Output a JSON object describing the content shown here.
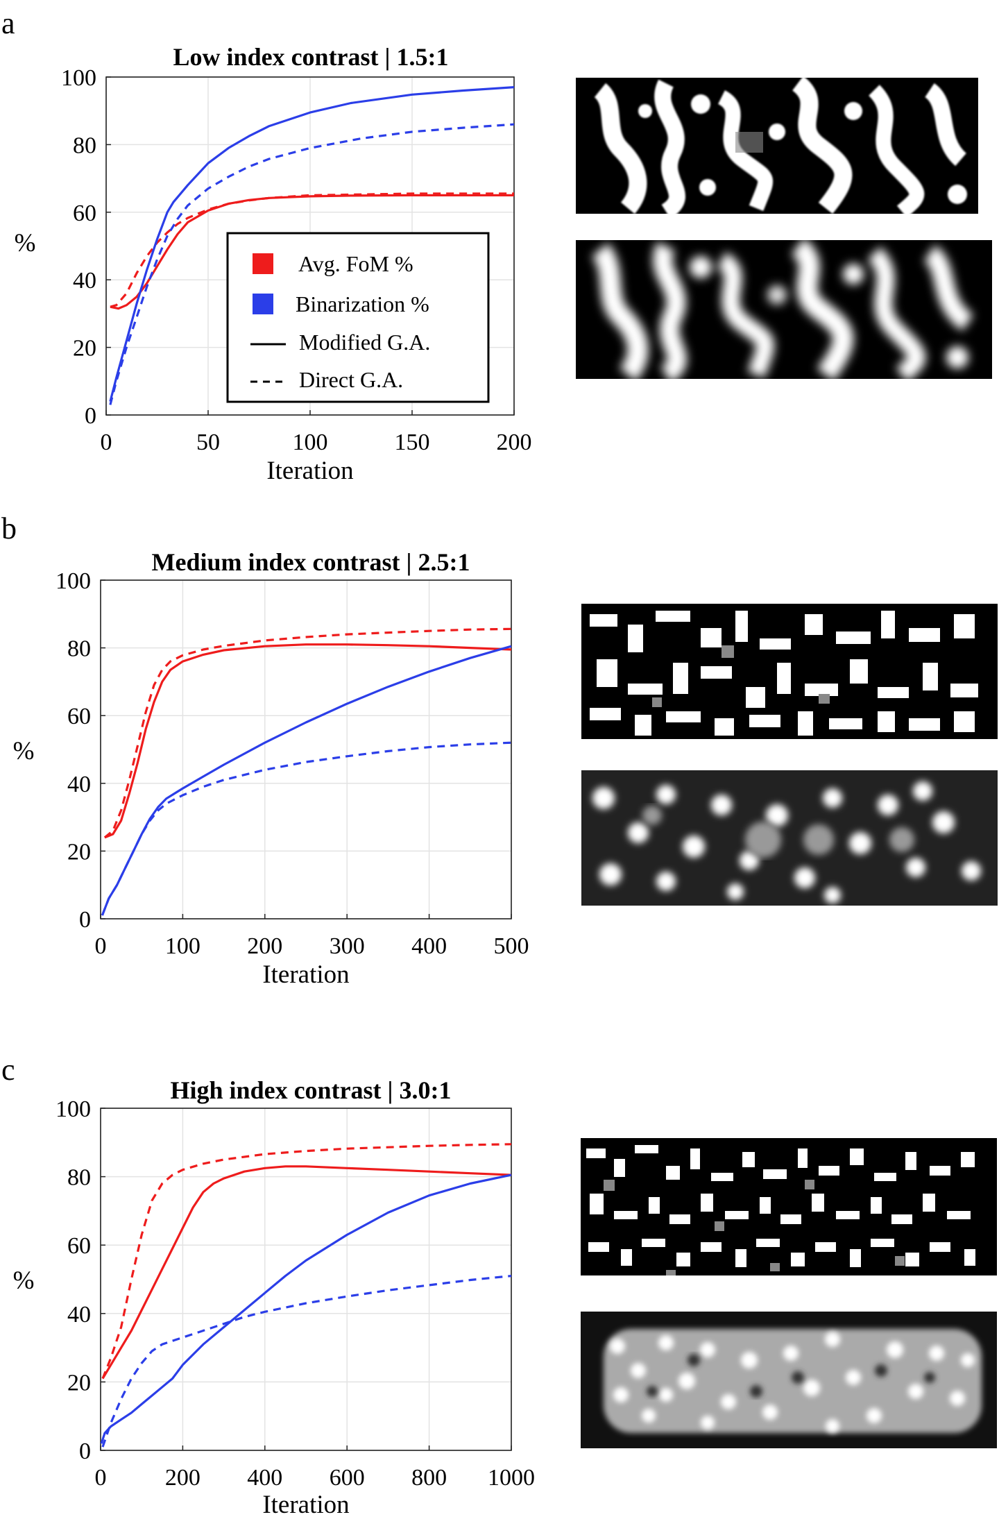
{
  "panels": [
    {
      "letter": "a"
    },
    {
      "letter": "b"
    },
    {
      "letter": "c"
    }
  ],
  "colors": {
    "fom": "#ee1c1c",
    "binarization": "#2b3ee8"
  },
  "legend": {
    "items": [
      {
        "label": "Avg. FoM %",
        "marker": "square",
        "color": "#ee1c1c"
      },
      {
        "label": "Binarization %",
        "marker": "square",
        "color": "#2b3ee8"
      },
      {
        "label": "Modified G.A.",
        "marker": "solid-line",
        "color": "#000000"
      },
      {
        "label": "Direct G.A.",
        "marker": "dashed-line",
        "color": "#000000"
      }
    ]
  },
  "chart_data": [
    {
      "type": "line",
      "title": "Low index contrast | 1.5:1",
      "xlabel": "Iteration",
      "ylabel": "%",
      "xlim": [
        0,
        200
      ],
      "ylim": [
        0,
        100
      ],
      "xticks": [
        0,
        50,
        100,
        150,
        200
      ],
      "yticks": [
        0,
        20,
        40,
        60,
        80,
        100
      ],
      "grid": true,
      "legend_placement": "inside-lower-center",
      "series": [
        {
          "metric": "Avg. FoM %",
          "method": "Modified G.A.",
          "color": "#ee1c1c",
          "style": "solid",
          "points": [
            [
              2,
              32
            ],
            [
              6,
              31.5
            ],
            [
              10,
              32.5
            ],
            [
              15,
              35
            ],
            [
              20,
              39
            ],
            [
              25,
              44
            ],
            [
              30,
              49
            ],
            [
              35,
              53.5
            ],
            [
              40,
              57
            ],
            [
              50,
              60.5
            ],
            [
              60,
              62.5
            ],
            [
              70,
              63.6
            ],
            [
              80,
              64.2
            ],
            [
              100,
              64.7
            ],
            [
              120,
              64.9
            ],
            [
              150,
              65
            ],
            [
              200,
              65
            ]
          ]
        },
        {
          "metric": "Avg. FoM %",
          "method": "Direct G.A.",
          "color": "#ee1c1c",
          "style": "dashed",
          "points": [
            [
              2,
              32
            ],
            [
              5,
              32.5
            ],
            [
              10,
              36
            ],
            [
              15,
              42
            ],
            [
              20,
              47
            ],
            [
              25,
              51
            ],
            [
              30,
              54
            ],
            [
              35,
              56.5
            ],
            [
              40,
              58.3
            ],
            [
              50,
              60.8
            ],
            [
              60,
              62.5
            ],
            [
              70,
              63.5
            ],
            [
              80,
              64.2
            ],
            [
              100,
              65
            ],
            [
              150,
              65.5
            ],
            [
              200,
              65.5
            ]
          ]
        },
        {
          "metric": "Binarization %",
          "method": "Modified G.A.",
          "color": "#2b3ee8",
          "style": "solid",
          "points": [
            [
              2,
              4
            ],
            [
              5,
              11
            ],
            [
              10,
              22
            ],
            [
              15,
              33
            ],
            [
              20,
              43
            ],
            [
              25,
              52
            ],
            [
              30,
              60
            ],
            [
              33,
              63
            ],
            [
              40,
              68
            ],
            [
              50,
              74.5
            ],
            [
              60,
              79
            ],
            [
              70,
              82.5
            ],
            [
              80,
              85.5
            ],
            [
              100,
              89.5
            ],
            [
              120,
              92.3
            ],
            [
              150,
              94.8
            ],
            [
              175,
              96
            ],
            [
              200,
              97
            ]
          ]
        },
        {
          "metric": "Binarization %",
          "method": "Direct G.A.",
          "color": "#2b3ee8",
          "style": "dashed",
          "points": [
            [
              2,
              3
            ],
            [
              5,
              10
            ],
            [
              10,
              20
            ],
            [
              15,
              29
            ],
            [
              20,
              38
            ],
            [
              25,
              46
            ],
            [
              30,
              53
            ],
            [
              35,
              58
            ],
            [
              40,
              62
            ],
            [
              50,
              67
            ],
            [
              60,
              70.5
            ],
            [
              70,
              73.5
            ],
            [
              80,
              75.8
            ],
            [
              100,
              79
            ],
            [
              125,
              81.8
            ],
            [
              150,
              83.8
            ],
            [
              175,
              85
            ],
            [
              200,
              86
            ]
          ]
        }
      ]
    },
    {
      "type": "line",
      "title": "Medium index contrast | 2.5:1",
      "xlabel": "Iteration",
      "ylabel": "%",
      "xlim": [
        0,
        500
      ],
      "ylim": [
        0,
        100
      ],
      "xticks": [
        0,
        100,
        200,
        300,
        400,
        500
      ],
      "yticks": [
        0,
        20,
        40,
        60,
        80,
        100
      ],
      "grid": true,
      "series": [
        {
          "metric": "Avg. FoM %",
          "method": "Modified G.A.",
          "color": "#ee1c1c",
          "style": "solid",
          "points": [
            [
              5,
              24
            ],
            [
              15,
              25
            ],
            [
              25,
              29
            ],
            [
              35,
              37
            ],
            [
              45,
              46
            ],
            [
              55,
              56
            ],
            [
              65,
              64
            ],
            [
              75,
              70
            ],
            [
              85,
              73.5
            ],
            [
              100,
              76
            ],
            [
              125,
              78
            ],
            [
              150,
              79.3
            ],
            [
              200,
              80.5
            ],
            [
              250,
              81
            ],
            [
              300,
              81
            ],
            [
              350,
              80.8
            ],
            [
              400,
              80.5
            ],
            [
              450,
              80
            ],
            [
              500,
              79.5
            ]
          ]
        },
        {
          "metric": "Avg. FoM %",
          "method": "Direct G.A.",
          "color": "#ee1c1c",
          "style": "dashed",
          "points": [
            [
              5,
              24
            ],
            [
              15,
              26
            ],
            [
              25,
              32
            ],
            [
              35,
              41
            ],
            [
              45,
              51
            ],
            [
              55,
              61
            ],
            [
              65,
              69
            ],
            [
              75,
              73.5
            ],
            [
              85,
              76
            ],
            [
              100,
              77.8
            ],
            [
              125,
              79.5
            ],
            [
              150,
              80.6
            ],
            [
              200,
              82.2
            ],
            [
              250,
              83.2
            ],
            [
              300,
              84
            ],
            [
              350,
              84.5
            ],
            [
              400,
              85
            ],
            [
              450,
              85.4
            ],
            [
              500,
              85.6
            ]
          ]
        },
        {
          "metric": "Binarization %",
          "method": "Modified G.A.",
          "color": "#2b3ee8",
          "style": "solid",
          "points": [
            [
              2,
              1
            ],
            [
              10,
              6
            ],
            [
              20,
              10
            ],
            [
              30,
              15
            ],
            [
              40,
              20
            ],
            [
              50,
              25
            ],
            [
              60,
              29.5
            ],
            [
              70,
              33
            ],
            [
              80,
              35.5
            ],
            [
              100,
              38.5
            ],
            [
              125,
              42
            ],
            [
              150,
              45.5
            ],
            [
              200,
              52
            ],
            [
              250,
              58
            ],
            [
              300,
              63.5
            ],
            [
              350,
              68.5
            ],
            [
              400,
              73
            ],
            [
              450,
              77
            ],
            [
              500,
              80.5
            ]
          ]
        },
        {
          "metric": "Binarization %",
          "method": "Direct G.A.",
          "color": "#2b3ee8",
          "style": "dashed",
          "points": [
            [
              2,
              1
            ],
            [
              10,
              6
            ],
            [
              20,
              10
            ],
            [
              30,
              15
            ],
            [
              40,
              20
            ],
            [
              50,
              25
            ],
            [
              60,
              29
            ],
            [
              70,
              32
            ],
            [
              80,
              34
            ],
            [
              100,
              36.5
            ],
            [
              125,
              39
            ],
            [
              150,
              41
            ],
            [
              200,
              44
            ],
            [
              250,
              46.3
            ],
            [
              300,
              48
            ],
            [
              350,
              49.5
            ],
            [
              400,
              50.7
            ],
            [
              450,
              51.5
            ],
            [
              500,
              52
            ]
          ]
        }
      ]
    },
    {
      "type": "line",
      "title": "High index contrast | 3.0:1",
      "xlabel": "Iteration",
      "ylabel": "%",
      "xlim": [
        0,
        1000
      ],
      "ylim": [
        0,
        100
      ],
      "xticks": [
        0,
        200,
        400,
        600,
        800,
        1000
      ],
      "yticks": [
        0,
        20,
        40,
        60,
        80,
        100
      ],
      "grid": true,
      "series": [
        {
          "metric": "Avg. FoM %",
          "method": "Modified G.A.",
          "color": "#ee1c1c",
          "style": "solid",
          "points": [
            [
              5,
              21
            ],
            [
              25,
              25
            ],
            [
              50,
              30
            ],
            [
              75,
              35
            ],
            [
              100,
              41
            ],
            [
              125,
              47
            ],
            [
              150,
              53
            ],
            [
              175,
              59
            ],
            [
              200,
              65
            ],
            [
              225,
              71
            ],
            [
              250,
              75.5
            ],
            [
              275,
              78
            ],
            [
              300,
              79.5
            ],
            [
              350,
              81.5
            ],
            [
              400,
              82.5
            ],
            [
              450,
              83
            ],
            [
              500,
              83
            ],
            [
              600,
              82.5
            ],
            [
              700,
              82
            ],
            [
              800,
              81.5
            ],
            [
              900,
              81
            ],
            [
              1000,
              80.5
            ]
          ]
        },
        {
          "metric": "Avg. FoM %",
          "method": "Direct G.A.",
          "color": "#ee1c1c",
          "style": "dashed",
          "points": [
            [
              5,
              21
            ],
            [
              25,
              27
            ],
            [
              50,
              36
            ],
            [
              75,
              50
            ],
            [
              100,
              63
            ],
            [
              125,
              73
            ],
            [
              150,
              78
            ],
            [
              175,
              80.5
            ],
            [
              200,
              82
            ],
            [
              250,
              83.8
            ],
            [
              300,
              85
            ],
            [
              400,
              86.6
            ],
            [
              500,
              87.5
            ],
            [
              600,
              88.2
            ],
            [
              700,
              88.6
            ],
            [
              800,
              89
            ],
            [
              900,
              89.3
            ],
            [
              1000,
              89.5
            ]
          ]
        },
        {
          "metric": "Binarization %",
          "method": "Modified G.A.",
          "color": "#2b3ee8",
          "style": "solid",
          "points": [
            [
              2,
              2
            ],
            [
              10,
              5
            ],
            [
              25,
              7
            ],
            [
              50,
              9
            ],
            [
              75,
              11
            ],
            [
              100,
              13.5
            ],
            [
              125,
              16
            ],
            [
              150,
              18.5
            ],
            [
              175,
              21
            ],
            [
              200,
              25
            ],
            [
              250,
              31
            ],
            [
              300,
              36
            ],
            [
              350,
              41
            ],
            [
              400,
              46
            ],
            [
              450,
              51
            ],
            [
              500,
              55.5
            ],
            [
              600,
              63
            ],
            [
              700,
              69.5
            ],
            [
              800,
              74.5
            ],
            [
              900,
              78
            ],
            [
              1000,
              80.5
            ]
          ]
        },
        {
          "metric": "Binarization %",
          "method": "Direct G.A.",
          "color": "#2b3ee8",
          "style": "dashed",
          "points": [
            [
              5,
              1
            ],
            [
              25,
              8
            ],
            [
              50,
              15
            ],
            [
              75,
              21
            ],
            [
              100,
              25.5
            ],
            [
              125,
              29
            ],
            [
              150,
              31
            ],
            [
              175,
              32
            ],
            [
              200,
              33
            ],
            [
              250,
              35
            ],
            [
              300,
              37
            ],
            [
              350,
              39
            ],
            [
              400,
              40.5
            ],
            [
              500,
              43
            ],
            [
              600,
              45
            ],
            [
              700,
              46.8
            ],
            [
              800,
              48.3
            ],
            [
              900,
              49.8
            ],
            [
              1000,
              51
            ]
          ]
        }
      ]
    }
  ]
}
